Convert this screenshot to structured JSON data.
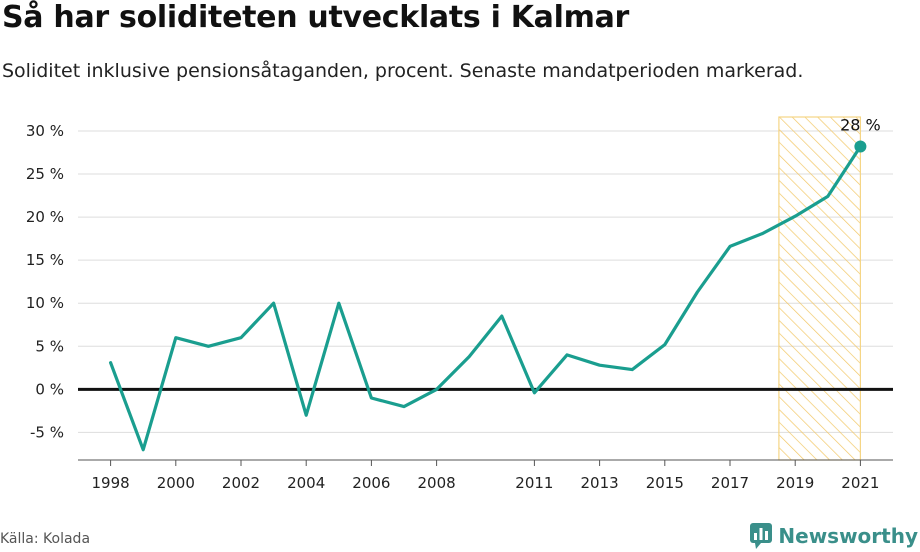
{
  "title": "Så har soliditeten utvecklats i Kalmar",
  "subtitle": "Soliditet inklusive pensionsåtaganden, procent. Senaste mandatperioden markerad.",
  "source": "Källa: Kolada",
  "brand": {
    "name": "Newsworthy",
    "icon": "newsworthy-logo-icon"
  },
  "colors": {
    "line": "#1a9e8f",
    "highlight": "#f5d585",
    "zero_line": "#111111",
    "grid": "#dddddd"
  },
  "chart_data": {
    "type": "line",
    "x": [
      1998,
      1999,
      2000,
      2001,
      2002,
      2003,
      2004,
      2005,
      2006,
      2007,
      2008,
      2009,
      2010,
      2011,
      2012,
      2013,
      2014,
      2015,
      2016,
      2017,
      2018,
      2019,
      2020,
      2021
    ],
    "values": [
      3.1,
      -7.0,
      6.0,
      5.0,
      6.0,
      10.0,
      -3.0,
      10.0,
      -1.0,
      -2.0,
      0.0,
      3.8,
      8.5,
      -0.4,
      4.0,
      2.8,
      2.3,
      5.2,
      11.3,
      16.6,
      18.1,
      20.1,
      22.4,
      28.2
    ],
    "x_ticks": [
      "1998",
      "2000",
      "2002",
      "2004",
      "2006",
      "2008",
      "2011",
      "2013",
      "2015",
      "2017",
      "2019",
      "2021"
    ],
    "y_ticks": [
      "30 %",
      "25 %",
      "20 %",
      "15 %",
      "10 %",
      "5 %",
      "0 %",
      "-5 %"
    ],
    "xlim": [
      1997.0,
      2022.0
    ],
    "ylim": [
      -8.2,
      32.2
    ],
    "highlight_range": [
      2018.5,
      2021
    ],
    "end_label": "28 %",
    "grid": true
  }
}
